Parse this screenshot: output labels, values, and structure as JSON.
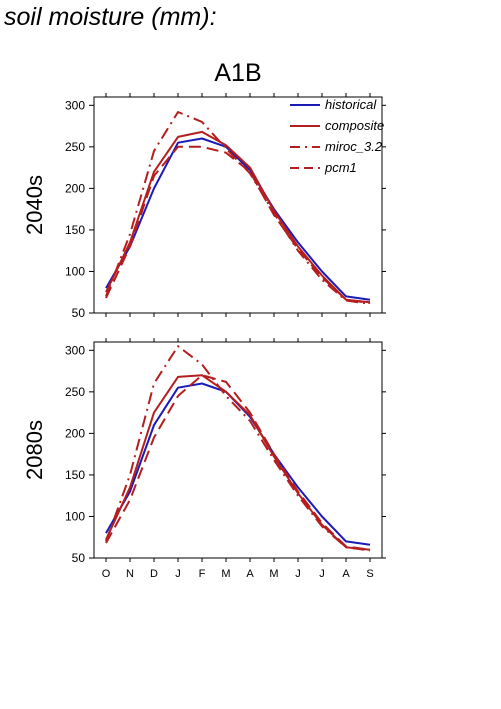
{
  "page": {
    "title": "soil moisture (mm):"
  },
  "colors": {
    "historical": "#1b1bb8",
    "model": "#b41e1e",
    "axis": "#000000"
  },
  "chart_data": [
    {
      "type": "line",
      "title": "A1B",
      "panel_label": "2040s",
      "ylim": [
        50,
        310
      ],
      "yticks": [
        50,
        100,
        150,
        200,
        250,
        300
      ],
      "categories": [
        "O",
        "N",
        "D",
        "J",
        "F",
        "M",
        "A",
        "M",
        "J",
        "J",
        "A",
        "S"
      ],
      "legend": {
        "position": "top-right"
      },
      "series": [
        {
          "name": "historical",
          "style": "solid",
          "color": "#1b1bb8",
          "values": [
            80,
            130,
            200,
            255,
            260,
            250,
            222,
            175,
            135,
            100,
            70,
            66
          ]
        },
        {
          "name": "composite",
          "style": "solid",
          "color": "#b41e1e",
          "values": [
            75,
            135,
            220,
            262,
            268,
            252,
            225,
            173,
            130,
            95,
            66,
            63
          ]
        },
        {
          "name": "miroc_3.2",
          "style": "dashdot",
          "color": "#b41e1e",
          "values": [
            70,
            145,
            245,
            292,
            280,
            248,
            218,
            170,
            125,
            90,
            65,
            61
          ]
        },
        {
          "name": "pcm1",
          "style": "dashed",
          "color": "#b41e1e",
          "values": [
            68,
            130,
            215,
            250,
            250,
            243,
            220,
            168,
            127,
            93,
            66,
            62
          ]
        }
      ]
    },
    {
      "type": "line",
      "title": "",
      "panel_label": "2080s",
      "ylim": [
        50,
        310
      ],
      "yticks": [
        50,
        100,
        150,
        200,
        250,
        300
      ],
      "categories": [
        "O",
        "N",
        "D",
        "J",
        "F",
        "M",
        "A",
        "M",
        "J",
        "J",
        "A",
        "S"
      ],
      "series": [
        {
          "name": "historical",
          "style": "solid",
          "color": "#1b1bb8",
          "values": [
            80,
            130,
            210,
            255,
            260,
            250,
            220,
            175,
            135,
            100,
            70,
            66
          ]
        },
        {
          "name": "composite",
          "style": "solid",
          "color": "#b41e1e",
          "values": [
            72,
            135,
            225,
            268,
            270,
            250,
            222,
            172,
            128,
            90,
            63,
            60
          ]
        },
        {
          "name": "miroc_3.2",
          "style": "dashdot",
          "color": "#b41e1e",
          "values": [
            70,
            150,
            260,
            305,
            283,
            245,
            215,
            168,
            125,
            88,
            63,
            59
          ]
        },
        {
          "name": "pcm1",
          "style": "dashed",
          "color": "#b41e1e",
          "values": [
            68,
            120,
            195,
            245,
            270,
            262,
            225,
            175,
            130,
            92,
            64,
            60
          ]
        }
      ]
    }
  ]
}
